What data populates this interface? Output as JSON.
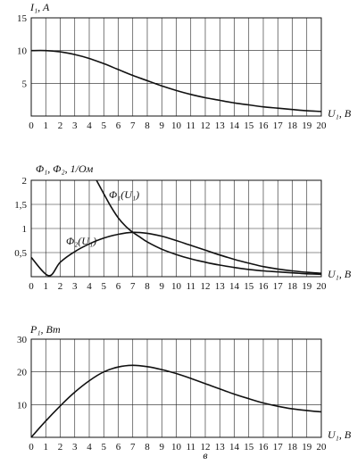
{
  "chart_data": [
    {
      "type": "line",
      "ylabel": "I₁, A",
      "xlabel": "U₁, B",
      "xlim": [
        0,
        20
      ],
      "ylim": [
        0,
        15
      ],
      "xticks": [
        "0",
        "1",
        "2",
        "3",
        "4",
        "5",
        "6",
        "7",
        "8",
        "9",
        "10",
        "11",
        "12",
        "13",
        "14",
        "15",
        "16",
        "17",
        "18",
        "19",
        "20"
      ],
      "yticks": [
        "5",
        "10",
        "15"
      ],
      "grid": true,
      "series": [
        {
          "x": [
            0,
            1,
            2,
            3,
            4,
            5,
            6,
            7,
            8,
            9,
            10,
            11,
            12,
            13,
            14,
            15,
            16,
            17,
            18,
            19,
            20
          ],
          "y": [
            10,
            10,
            9.8,
            9.4,
            8.8,
            8.0,
            7.1,
            6.2,
            5.4,
            4.6,
            3.9,
            3.3,
            2.8,
            2.4,
            2.0,
            1.7,
            1.4,
            1.2,
            1.0,
            0.8,
            0.7
          ]
        }
      ]
    },
    {
      "type": "line",
      "ylabel": "Φ₁, Φ₂, 1/Ом",
      "xlabel": "U₁, B",
      "xlim": [
        0,
        20
      ],
      "ylim": [
        0,
        2
      ],
      "xticks": [
        "0",
        "1",
        "2",
        "3",
        "4",
        "5",
        "6",
        "7",
        "8",
        "9",
        "10",
        "11",
        "12",
        "13",
        "14",
        "15",
        "16",
        "17",
        "18",
        "19",
        "20"
      ],
      "yticks": [
        "0,5",
        "1",
        "1,5",
        "2"
      ],
      "grid": true,
      "series": [
        {
          "name": "Φ₁(U₁)",
          "x": [
            4.5,
            5,
            5.5,
            6,
            6.5,
            7,
            7.5,
            8,
            9,
            10,
            11,
            12,
            13,
            14,
            15,
            16,
            17,
            18,
            19,
            20
          ],
          "y": [
            2.0,
            1.72,
            1.45,
            1.22,
            1.05,
            0.92,
            0.82,
            0.72,
            0.57,
            0.46,
            0.37,
            0.3,
            0.24,
            0.19,
            0.15,
            0.12,
            0.1,
            0.08,
            0.06,
            0.05
          ]
        },
        {
          "name": "Φ₂(U₁)",
          "x": [
            0,
            1.2,
            2,
            3,
            4,
            5,
            6,
            7,
            8,
            9,
            10,
            11,
            12,
            13,
            14,
            15,
            16,
            17,
            18,
            19,
            20
          ],
          "y": [
            0.4,
            0.02,
            0.3,
            0.52,
            0.68,
            0.8,
            0.88,
            0.92,
            0.9,
            0.84,
            0.75,
            0.65,
            0.55,
            0.45,
            0.36,
            0.28,
            0.21,
            0.16,
            0.12,
            0.09,
            0.07
          ]
        }
      ]
    },
    {
      "type": "line",
      "ylabel": "P₁, Вт",
      "xlabel": "U₁, B",
      "xlim": [
        0,
        20
      ],
      "ylim": [
        0,
        30
      ],
      "xticks": [
        "0",
        "1",
        "2",
        "3",
        "4",
        "5",
        "6",
        "7",
        "8",
        "9",
        "10",
        "11",
        "12",
        "13",
        "14",
        "15",
        "16",
        "17",
        "18",
        "19",
        "20"
      ],
      "yticks": [
        "10",
        "20",
        "30"
      ],
      "grid": true,
      "series": [
        {
          "x": [
            0,
            1,
            2,
            3,
            4,
            5,
            6,
            7,
            8,
            9,
            10,
            11,
            12,
            13,
            14,
            15,
            16,
            17,
            18,
            19,
            20
          ],
          "y": [
            0,
            5,
            9.6,
            13.8,
            17.3,
            20.0,
            21.5,
            22.0,
            21.6,
            20.7,
            19.5,
            18.0,
            16.4,
            14.8,
            13.2,
            11.8,
            10.5,
            9.5,
            8.7,
            8.2,
            7.8
          ]
        }
      ]
    }
  ],
  "caption": "в"
}
